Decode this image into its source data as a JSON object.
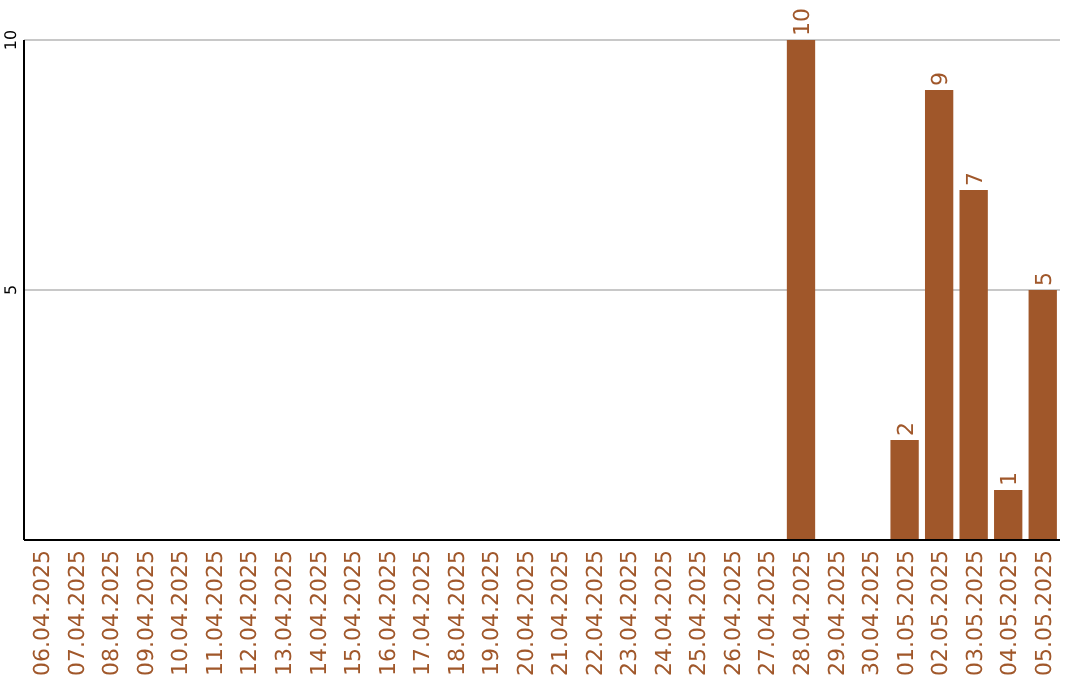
{
  "chart_data": {
    "type": "bar",
    "categories": [
      "06.04.2025",
      "07.04.2025",
      "08.04.2025",
      "09.04.2025",
      "10.04.2025",
      "11.04.2025",
      "12.04.2025",
      "13.04.2025",
      "14.04.2025",
      "15.04.2025",
      "16.04.2025",
      "17.04.2025",
      "18.04.2025",
      "19.04.2025",
      "20.04.2025",
      "21.04.2025",
      "22.04.2025",
      "23.04.2025",
      "24.04.2025",
      "25.04.2025",
      "26.04.2025",
      "27.04.2025",
      "28.04.2025",
      "29.04.2025",
      "30.04.2025",
      "01.05.2025",
      "02.05.2025",
      "03.05.2025",
      "04.05.2025",
      "05.05.2025"
    ],
    "values": [
      0,
      0,
      0,
      0,
      0,
      0,
      0,
      0,
      0,
      0,
      0,
      0,
      0,
      0,
      0,
      0,
      0,
      0,
      0,
      0,
      0,
      0,
      10,
      0,
      0,
      2,
      9,
      7,
      1,
      5
    ],
    "value_labels": [
      null,
      null,
      null,
      null,
      null,
      null,
      null,
      null,
      null,
      null,
      null,
      null,
      null,
      null,
      null,
      null,
      null,
      null,
      null,
      null,
      null,
      null,
      "10",
      null,
      null,
      "2",
      "9",
      "7",
      "1",
      "5"
    ],
    "color": "#a0572a",
    "ylim": [
      0,
      10
    ],
    "yticks": [
      5,
      10
    ],
    "grid": "y"
  }
}
